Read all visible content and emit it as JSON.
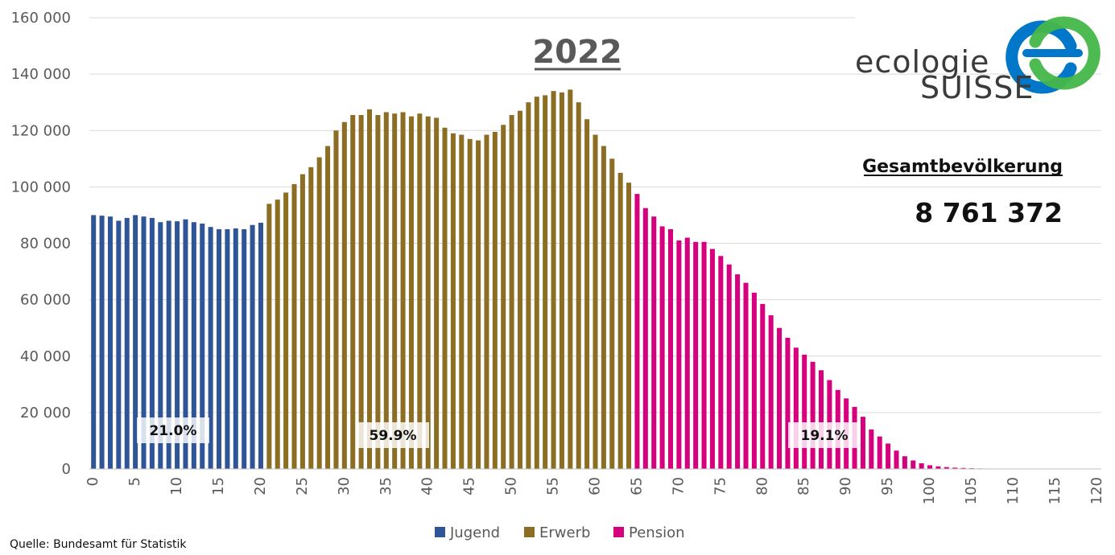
{
  "chart_data": {
    "type": "bar",
    "title": "2022",
    "xlabel": "",
    "ylabel": "",
    "xlim": [
      0,
      120
    ],
    "ylim": [
      0,
      160000
    ],
    "x_ticks": [
      "0",
      "5",
      "10",
      "15",
      "20",
      "25",
      "30",
      "35",
      "40",
      "45",
      "50",
      "55",
      "60",
      "65",
      "70",
      "75",
      "80",
      "85",
      "90",
      "95",
      "100",
      "105",
      "110",
      "115",
      "120"
    ],
    "y_ticks": [
      "0",
      "20 000",
      "40 000",
      "60 000",
      "80 000",
      "100 000",
      "120 000",
      "140 000",
      "160 000"
    ],
    "grid": "horizontal",
    "legend_position": "bottom",
    "series": [
      {
        "name": "Jugend",
        "color": "#2f5597",
        "start_age": 0,
        "values": [
          90000,
          89800,
          89500,
          88000,
          89000,
          90000,
          89500,
          89000,
          87500,
          88000,
          87800,
          88500,
          87500,
          87000,
          85800,
          85000,
          85000,
          85300,
          85000,
          86500,
          87300
        ]
      },
      {
        "name": "Erwerb",
        "color": "#8b6d24",
        "start_age": 21,
        "values": [
          94000,
          95500,
          98000,
          101000,
          104500,
          107000,
          110500,
          114500,
          120000,
          123000,
          125500,
          125500,
          127500,
          125500,
          126500,
          126000,
          126500,
          125000,
          126000,
          125000,
          124500,
          121000,
          119000,
          118500,
          117000,
          116500,
          118500,
          119500,
          122000,
          125500,
          127000,
          130000,
          132000,
          132500,
          134000,
          133500,
          134500,
          130000,
          124000,
          118500,
          114500,
          110000,
          105000,
          101500
        ]
      },
      {
        "name": "Pension",
        "color": "#d6007e",
        "start_age": 65,
        "values": [
          97500,
          92500,
          89500,
          86000,
          85000,
          81000,
          82000,
          80500,
          80500,
          78000,
          75500,
          72500,
          69000,
          66000,
          62500,
          58500,
          54500,
          50000,
          46500,
          43000,
          40500,
          38000,
          35000,
          31500,
          28000,
          25000,
          22000,
          18500,
          14000,
          11500,
          9000,
          6500,
          4500,
          3000,
          2000,
          1300,
          900,
          650,
          450,
          350,
          250,
          180,
          120,
          80
        ]
      }
    ],
    "annotations": [
      "21.0%",
      "59.9%",
      "19.1%"
    ],
    "total_label": "Gesamtbevölkerung",
    "total_value": "8 761 372",
    "source": "Quelle: Bundesamt für Statistik"
  },
  "logo": {
    "line1": "ecologie",
    "line2": "SUISSE",
    "colors": [
      "#0077c8",
      "#44b649"
    ]
  }
}
